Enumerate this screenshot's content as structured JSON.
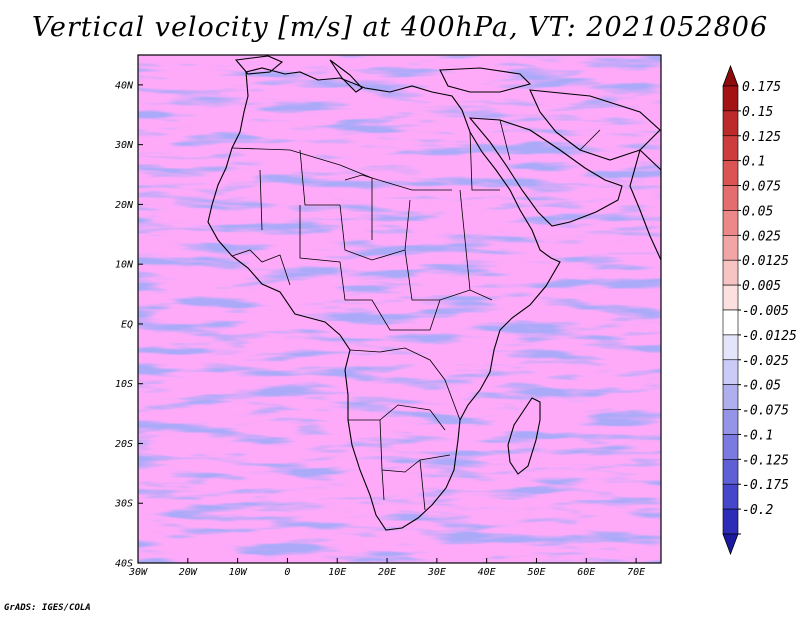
{
  "title": "Vertical velocity [m/s] at 400hPa, VT: 2021052806",
  "credit": "GrADS: IGES/COLA",
  "map": {
    "region": "Africa",
    "lon_range": [
      -30,
      75
    ],
    "lat_range": [
      -40,
      45
    ],
    "lon_labels": [
      {
        "lon": -30,
        "label": "30W"
      },
      {
        "lon": -20,
        "label": "20W"
      },
      {
        "lon": -10,
        "label": "10W"
      },
      {
        "lon": 0,
        "label": "0"
      },
      {
        "lon": 10,
        "label": "10E"
      },
      {
        "lon": 20,
        "label": "20E"
      },
      {
        "lon": 30,
        "label": "30E"
      },
      {
        "lon": 40,
        "label": "40E"
      },
      {
        "lon": 50,
        "label": "50E"
      },
      {
        "lon": 60,
        "label": "60E"
      },
      {
        "lon": 70,
        "label": "70E"
      }
    ],
    "lat_labels": [
      {
        "lat": 40,
        "label": "40N"
      },
      {
        "lat": 30,
        "label": "30N"
      },
      {
        "lat": 20,
        "label": "20N"
      },
      {
        "lat": 10,
        "label": "10N"
      },
      {
        "lat": 0,
        "label": "EQ"
      },
      {
        "lat": -10,
        "label": "10S"
      },
      {
        "lat": -20,
        "label": "20S"
      },
      {
        "lat": -30,
        "label": "30S"
      },
      {
        "lat": -40,
        "label": "40S"
      }
    ]
  },
  "colorbar": {
    "levels": [
      {
        "label": "0.175",
        "color": "#a41313"
      },
      {
        "label": "0.15",
        "color": "#bd2a2a"
      },
      {
        "label": "0.125",
        "color": "#cd3d3d"
      },
      {
        "label": "0.1",
        "color": "#dc5353"
      },
      {
        "label": "0.075",
        "color": "#e46d6d"
      },
      {
        "label": "0.05",
        "color": "#ec8888"
      },
      {
        "label": "0.025",
        "color": "#f2a5a5"
      },
      {
        "label": "0.0125",
        "color": "#f8c3c3"
      },
      {
        "label": "0.005",
        "color": "#fce0e0"
      },
      {
        "label": "-0.005",
        "color": "#ffffff"
      },
      {
        "label": "-0.0125",
        "color": "#e4e4fb"
      },
      {
        "label": "-0.025",
        "color": "#cbcbf7"
      },
      {
        "label": "-0.05",
        "color": "#afafef"
      },
      {
        "label": "-0.075",
        "color": "#9494e8"
      },
      {
        "label": "-0.1",
        "color": "#7a7ae0"
      },
      {
        "label": "-0.125",
        "color": "#5f5fd6"
      },
      {
        "label": "-0.175",
        "color": "#4646cb"
      },
      {
        "label": "-0.2",
        "color": "#2c2cb8"
      }
    ],
    "top_arrow_color": "#8c0b0b",
    "bottom_arrow_color": "#1a1aa0"
  }
}
